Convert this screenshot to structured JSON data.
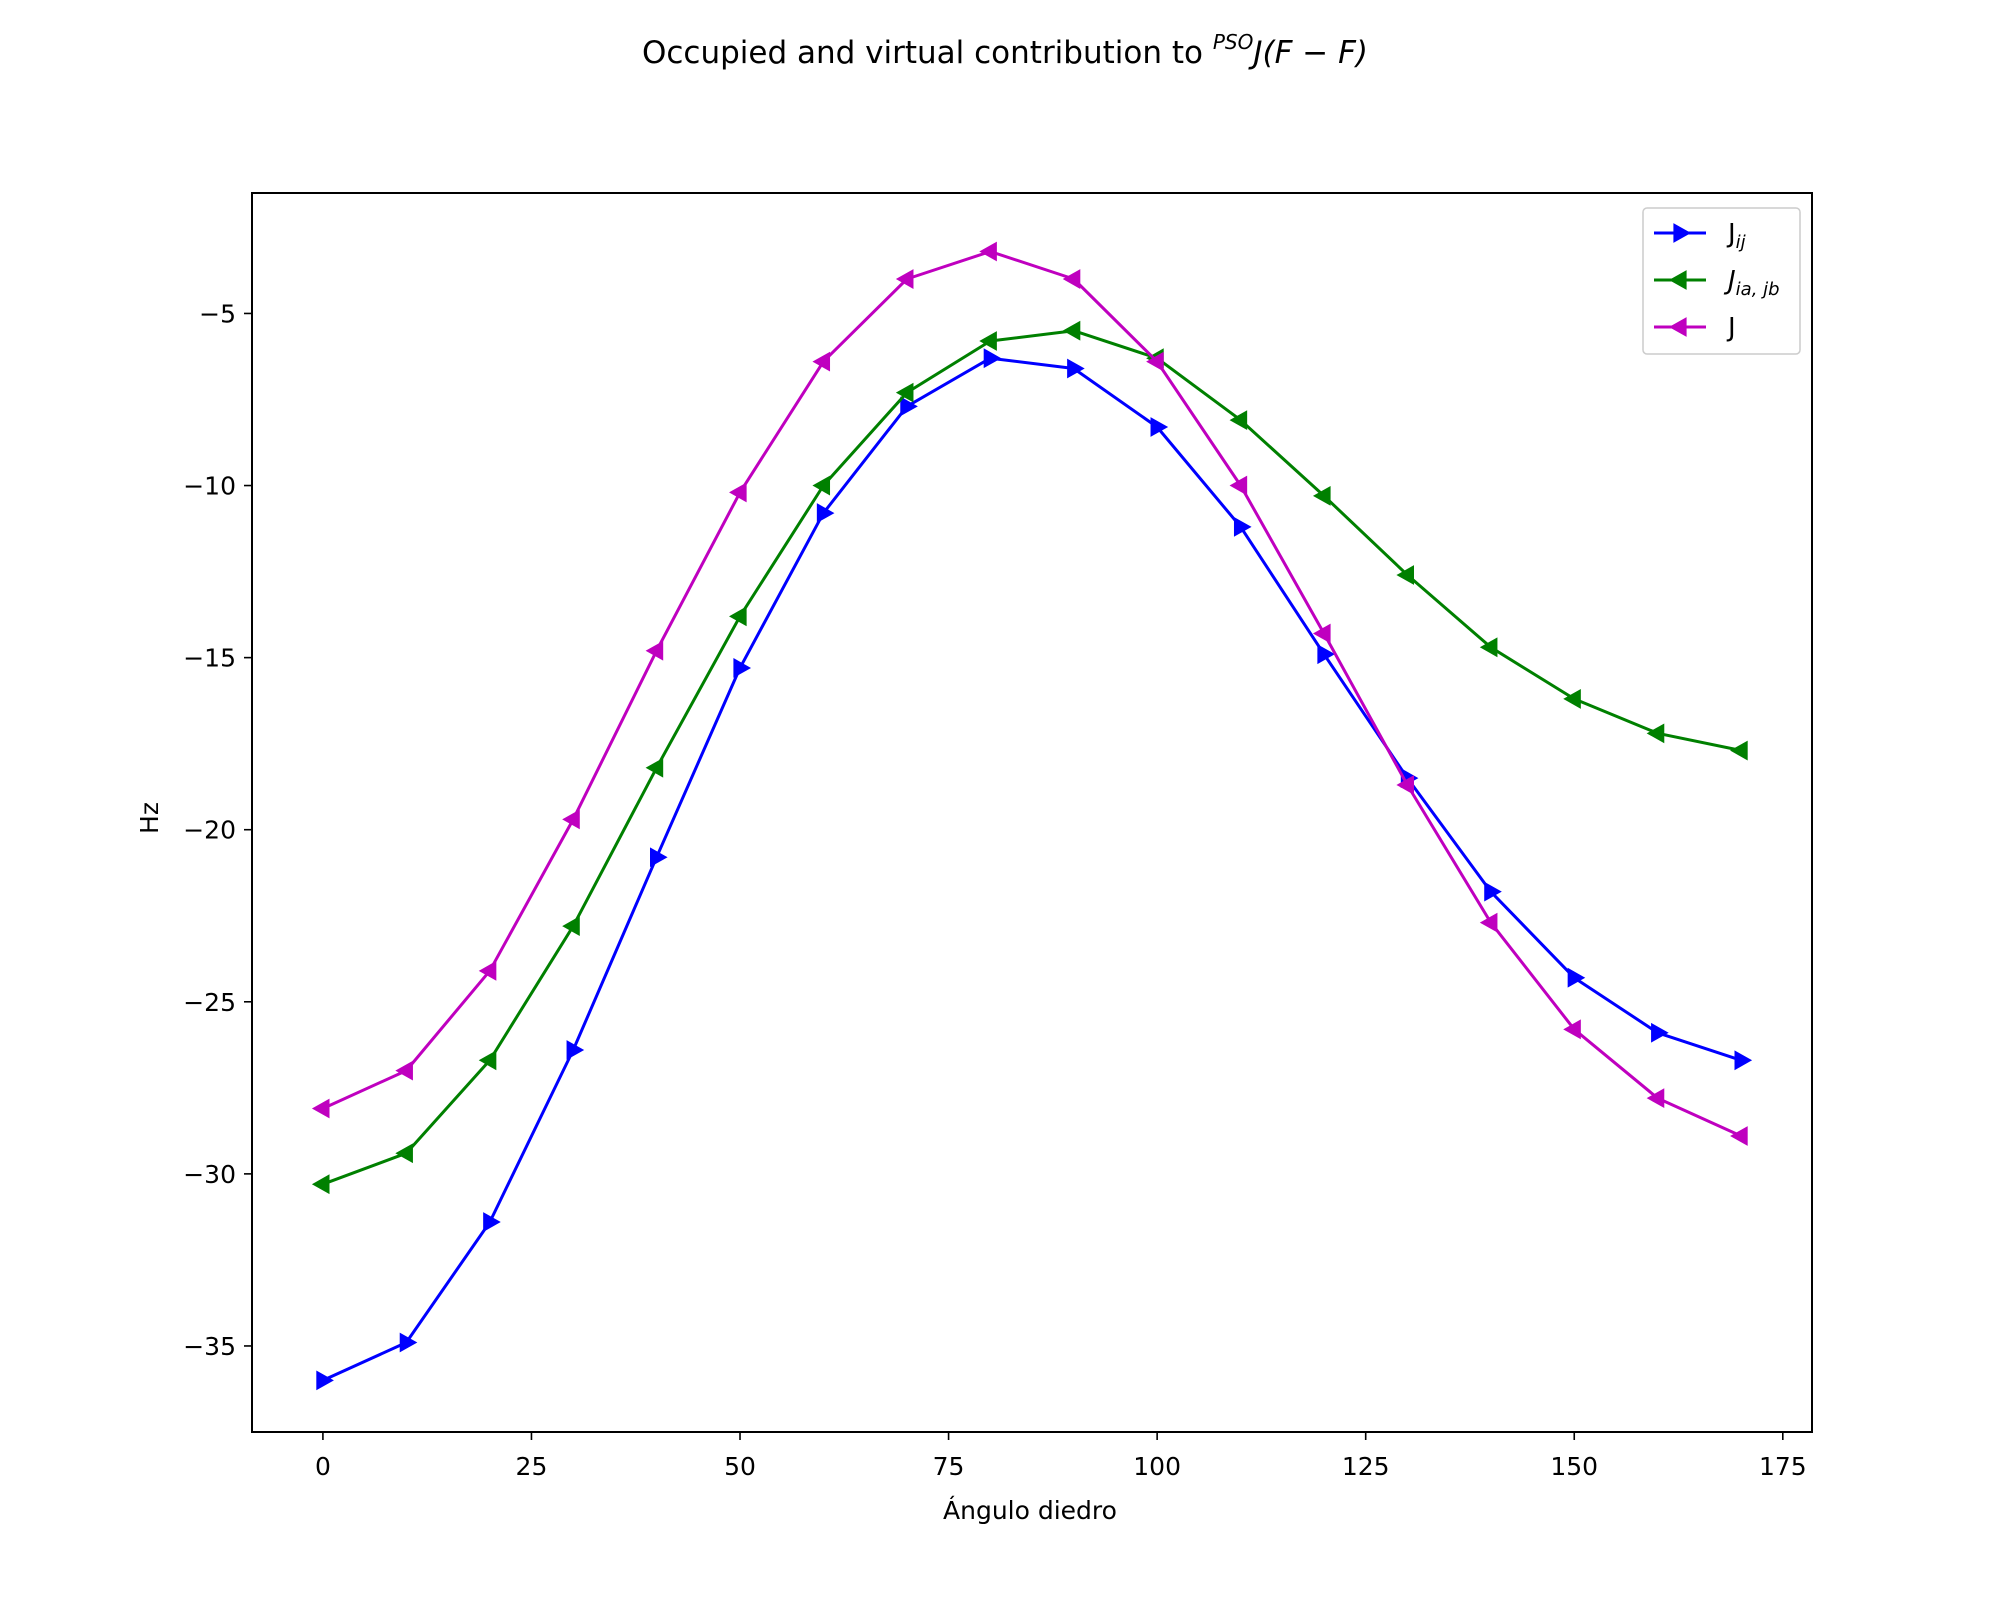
{
  "chart_data": {
    "type": "line",
    "title": {
      "main": "Occupied and virtual contribution to ",
      "sup": "PSO",
      "math": "J(F − F)"
    },
    "xlabel": "Ángulo diedro",
    "ylabel": "Hz",
    "xlim": [
      -8.5,
      178.5
    ],
    "ylim": [
      -37.5,
      -1.5
    ],
    "x_ticks": [
      0,
      25,
      50,
      75,
      100,
      125,
      150,
      175
    ],
    "y_ticks": [
      -35,
      -30,
      -25,
      -20,
      -15,
      -10,
      -5
    ],
    "y_tick_labels": [
      "−35",
      "−30",
      "−25",
      "−20",
      "−15",
      "−10",
      "−5"
    ],
    "grid": false,
    "legend_position": "top-right",
    "x": [
      0,
      10,
      20,
      30,
      40,
      50,
      60,
      70,
      80,
      90,
      100,
      110,
      120,
      130,
      140,
      150,
      160,
      170
    ],
    "series": [
      {
        "name": "J",
        "name_sub": "ij",
        "name_italic": false,
        "color": "#0000ff",
        "marker": "triangle-right",
        "values": [
          -36.0,
          -34.9,
          -31.4,
          -26.4,
          -20.8,
          -15.3,
          -10.8,
          -7.7,
          -6.3,
          -6.6,
          -8.3,
          -11.2,
          -14.9,
          -18.5,
          -21.8,
          -24.3,
          -25.9,
          -26.7
        ]
      },
      {
        "name": "J",
        "name_sub": "ia, jb",
        "name_italic": true,
        "color": "#008000",
        "marker": "triangle-left",
        "values": [
          -30.3,
          -29.4,
          -26.7,
          -22.8,
          -18.2,
          -13.8,
          -10.0,
          -7.3,
          -5.8,
          -5.5,
          -6.3,
          -8.1,
          -10.3,
          -12.6,
          -14.7,
          -16.2,
          -17.2,
          -17.7
        ]
      },
      {
        "name": "J",
        "name_sub": "",
        "name_italic": false,
        "color": "#bf00bf",
        "marker": "triangle-left",
        "values": [
          -28.1,
          -27.0,
          -24.1,
          -19.7,
          -14.8,
          -10.2,
          -6.4,
          -4.0,
          -3.2,
          -4.0,
          -6.4,
          -10.0,
          -14.3,
          -18.7,
          -22.7,
          -25.8,
          -27.8,
          -28.9
        ]
      }
    ]
  }
}
